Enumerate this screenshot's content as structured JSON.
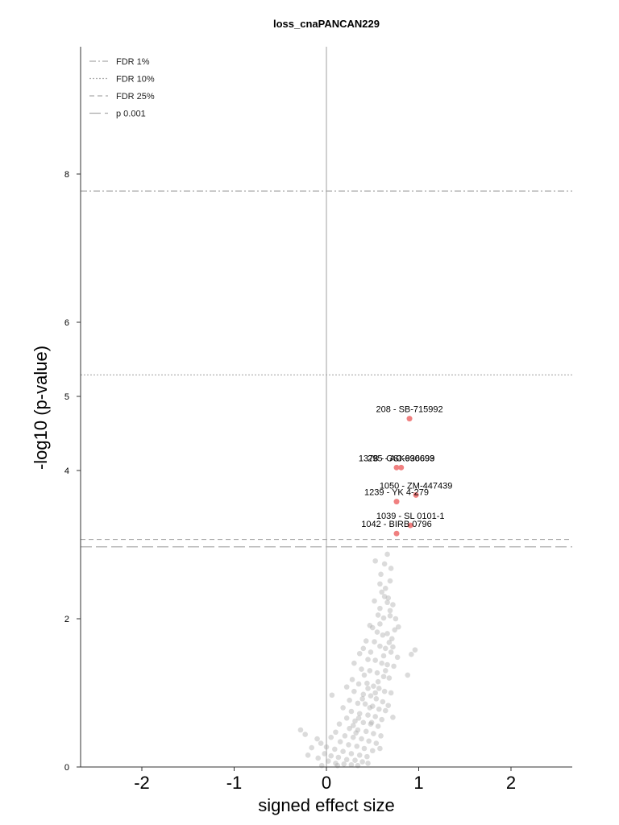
{
  "chart_data": {
    "type": "scatter",
    "title": "loss_cnaPANCAN229",
    "xlabel": "signed effect size",
    "ylabel": "-log10 (p-value)",
    "xlim": [
      -2.5,
      2.7
    ],
    "ylim": [
      0,
      9.7
    ],
    "xticks": [
      -2,
      -1,
      0,
      1,
      2
    ],
    "xtick_labels": [
      "-2",
      "-1",
      "0",
      "1",
      "2"
    ],
    "yticks": [
      0,
      2,
      4,
      5,
      6,
      8
    ],
    "ytick_labels": [
      "0",
      "2",
      "4",
      "5",
      "6",
      "8"
    ],
    "grid": false,
    "legend_position": "top-left",
    "colors": {
      "significant": "#f08080",
      "nonsignificant": "#b0b0b0",
      "threshold_line": "#aaaaaa",
      "zero_line": "#c0c0c0"
    },
    "thresholds": [
      {
        "name": "FDR 1%",
        "y": 7.77,
        "dash": "8,3,2,3"
      },
      {
        "name": "FDR 10%",
        "y": 5.29,
        "dash": "2,2"
      },
      {
        "name": "FDR 25%",
        "y": 3.07,
        "dash": "6,4"
      },
      {
        "name": "p 0.001",
        "y": 2.97,
        "dash": "14,5"
      }
    ],
    "significant_points": [
      {
        "label": "208 - SB-715992",
        "x": 0.9,
        "y": 4.7
      },
      {
        "label": "1378 - GSK690693",
        "x": 0.76,
        "y": 4.04
      },
      {
        "label": "295 - AC-936699",
        "x": 0.81,
        "y": 4.04
      },
      {
        "label": "1050 - ZM-447439",
        "x": 0.97,
        "y": 3.67
      },
      {
        "label": "1239 - YK 4-279",
        "x": 0.76,
        "y": 3.58
      },
      {
        "label": "1039 - SL 0101-1",
        "x": 0.91,
        "y": 3.26
      },
      {
        "label": "1042 - BIRB 0796",
        "x": 0.76,
        "y": 3.15
      }
    ],
    "other_points": [
      [
        0.53,
        2.78
      ],
      [
        0.66,
        2.87
      ],
      [
        0.63,
        2.74
      ],
      [
        0.7,
        2.68
      ],
      [
        0.59,
        2.6
      ],
      [
        0.58,
        2.47
      ],
      [
        0.64,
        2.41
      ],
      [
        0.69,
        2.51
      ],
      [
        0.63,
        2.3
      ],
      [
        0.67,
        2.28
      ],
      [
        0.72,
        2.19
      ],
      [
        0.69,
        2.11
      ],
      [
        0.52,
        2.24
      ],
      [
        0.58,
        2.14
      ],
      [
        0.62,
        2.01
      ],
      [
        0.56,
        2.05
      ],
      [
        0.75,
        2.0
      ],
      [
        0.78,
        1.89
      ],
      [
        0.47,
        1.91
      ],
      [
        0.5,
        1.88
      ],
      [
        0.55,
        1.82
      ],
      [
        0.61,
        1.78
      ],
      [
        0.66,
        1.8
      ],
      [
        0.71,
        1.73
      ],
      [
        0.43,
        1.7
      ],
      [
        0.52,
        1.69
      ],
      [
        0.58,
        1.63
      ],
      [
        0.64,
        1.6
      ],
      [
        0.7,
        1.55
      ],
      [
        0.92,
        1.52
      ],
      [
        0.96,
        1.58
      ],
      [
        0.4,
        1.6
      ],
      [
        0.48,
        1.55
      ],
      [
        0.36,
        1.53
      ],
      [
        0.45,
        1.45
      ],
      [
        0.53,
        1.44
      ],
      [
        0.6,
        1.4
      ],
      [
        0.66,
        1.38
      ],
      [
        0.73,
        1.36
      ],
      [
        0.3,
        1.4
      ],
      [
        0.38,
        1.32
      ],
      [
        0.47,
        1.3
      ],
      [
        0.55,
        1.27
      ],
      [
        0.62,
        1.22
      ],
      [
        0.68,
        1.2
      ],
      [
        0.88,
        1.24
      ],
      [
        0.28,
        1.18
      ],
      [
        0.35,
        1.12
      ],
      [
        0.44,
        1.13
      ],
      [
        0.51,
        1.09
      ],
      [
        0.57,
        1.06
      ],
      [
        0.63,
        1.02
      ],
      [
        0.7,
        1.0
      ],
      [
        0.22,
        1.08
      ],
      [
        0.3,
        1.02
      ],
      [
        0.4,
        0.98
      ],
      [
        0.48,
        0.96
      ],
      [
        0.54,
        0.92
      ],
      [
        0.61,
        0.88
      ],
      [
        0.67,
        0.83
      ],
      [
        0.06,
        0.97
      ],
      [
        0.25,
        0.9
      ],
      [
        0.34,
        0.86
      ],
      [
        0.42,
        0.85
      ],
      [
        0.5,
        0.82
      ],
      [
        0.57,
        0.78
      ],
      [
        0.64,
        0.76
      ],
      [
        0.18,
        0.8
      ],
      [
        0.27,
        0.75
      ],
      [
        0.36,
        0.72
      ],
      [
        0.45,
        0.7
      ],
      [
        0.53,
        0.68
      ],
      [
        0.6,
        0.64
      ],
      [
        0.72,
        0.67
      ],
      [
        0.22,
        0.66
      ],
      [
        0.31,
        0.62
      ],
      [
        0.4,
        0.6
      ],
      [
        0.48,
        0.58
      ],
      [
        0.56,
        0.55
      ],
      [
        0.14,
        0.58
      ],
      [
        0.25,
        0.52
      ],
      [
        0.34,
        0.5
      ],
      [
        0.43,
        0.48
      ],
      [
        0.51,
        0.45
      ],
      [
        0.59,
        0.42
      ],
      [
        0.1,
        0.47
      ],
      [
        0.2,
        0.42
      ],
      [
        0.29,
        0.4
      ],
      [
        0.38,
        0.38
      ],
      [
        0.46,
        0.35
      ],
      [
        0.54,
        0.32
      ],
      [
        -0.28,
        0.5
      ],
      [
        -0.23,
        0.44
      ],
      [
        0.05,
        0.4
      ],
      [
        0.15,
        0.34
      ],
      [
        0.24,
        0.3
      ],
      [
        0.33,
        0.28
      ],
      [
        0.41,
        0.25
      ],
      [
        0.5,
        0.22
      ],
      [
        -0.1,
        0.38
      ],
      [
        -0.06,
        0.32
      ],
      [
        0.0,
        0.27
      ],
      [
        0.09,
        0.24
      ],
      [
        0.18,
        0.21
      ],
      [
        0.27,
        0.18
      ],
      [
        0.36,
        0.16
      ],
      [
        0.44,
        0.14
      ],
      [
        -0.16,
        0.26
      ],
      [
        -0.02,
        0.18
      ],
      [
        0.05,
        0.15
      ],
      [
        0.13,
        0.13
      ],
      [
        0.22,
        0.1
      ],
      [
        0.31,
        0.09
      ],
      [
        0.39,
        0.07
      ],
      [
        -0.09,
        0.12
      ],
      [
        -0.2,
        0.16
      ],
      [
        0.02,
        0.08
      ],
      [
        0.1,
        0.05
      ],
      [
        0.19,
        0.04
      ],
      [
        0.27,
        0.03
      ],
      [
        -0.05,
        0.02
      ],
      [
        0.12,
        0.02
      ],
      [
        0.34,
        0.02
      ],
      [
        0.45,
        0.05
      ],
      [
        0.58,
        0.25
      ],
      [
        0.49,
        0.6
      ],
      [
        0.41,
        1.24
      ],
      [
        0.68,
        1.68
      ],
      [
        0.74,
        1.85
      ],
      [
        0.6,
        2.36
      ],
      [
        0.66,
        2.22
      ],
      [
        0.72,
        1.62
      ],
      [
        0.56,
        1.15
      ],
      [
        0.47,
        0.8
      ],
      [
        0.62,
        1.5
      ],
      [
        0.35,
        0.66
      ],
      [
        0.29,
        0.56
      ],
      [
        0.39,
        0.92
      ],
      [
        0.53,
        1.0
      ],
      [
        0.77,
        1.48
      ],
      [
        0.64,
        1.3
      ],
      [
        0.58,
        1.93
      ],
      [
        0.69,
        2.04
      ],
      [
        0.45,
        1.06
      ],
      [
        0.32,
        0.46
      ]
    ]
  }
}
